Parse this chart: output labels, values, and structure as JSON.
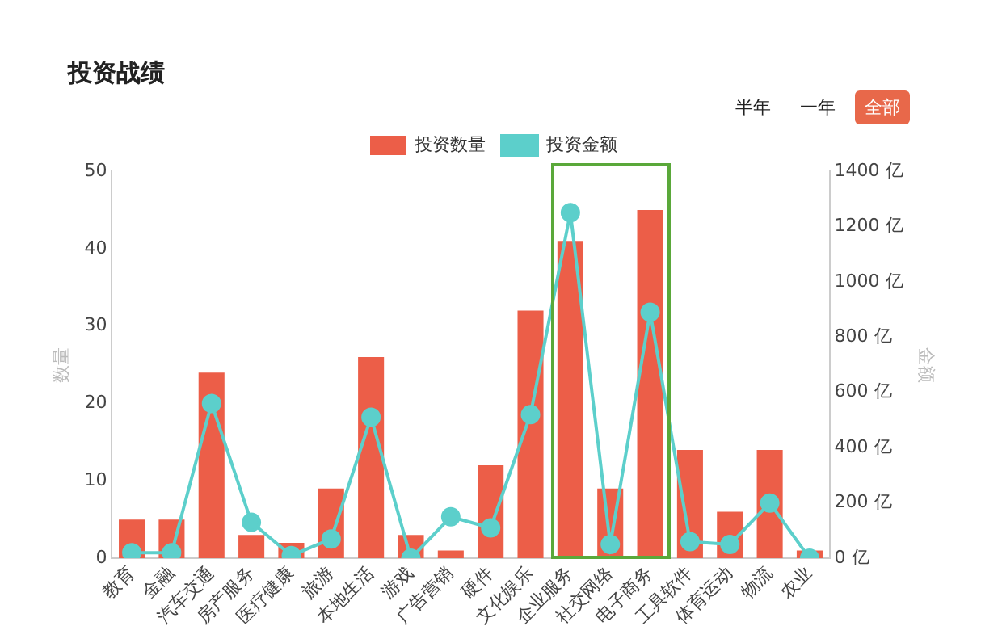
{
  "chart_data": {
    "type": "bar",
    "title": "投资战绩",
    "ylabel": "数量",
    "y2label": "金额",
    "annotations": [
      "半年",
      "一年",
      "全部"
    ],
    "categories": [
      "教育",
      "金融",
      "汽车交通",
      "房产服务",
      "医疗健康",
      "旅游",
      "本地生活",
      "游戏",
      "广告营销",
      "硬件",
      "文化娱乐",
      "企业服务",
      "社交网络",
      "电子商务",
      "工具软件",
      "体育运动",
      "物流",
      "农业"
    ],
    "series": [
      {
        "name": "投资数量",
        "color": "#ec5e48",
        "values": [
          5,
          5,
          24,
          3,
          2,
          9,
          26,
          3,
          1,
          12,
          32,
          41,
          9,
          45,
          14,
          6,
          14,
          1
        ]
      },
      {
        "name": "投资金额",
        "type": "line",
        "axis": "y2",
        "color": "#5ccfcb",
        "values": [
          20,
          20,
          560,
          130,
          10,
          70,
          510,
          0,
          150,
          110,
          520,
          1250,
          50,
          890,
          60,
          50,
          200,
          0
        ]
      }
    ],
    "ylim": [
      0,
      50
    ],
    "yticks": [
      0,
      10,
      20,
      30,
      40,
      50
    ],
    "y2lim": [
      0,
      1400
    ],
    "y2ticks": [
      {
        "value": 0,
        "label": "0 亿"
      },
      {
        "value": 200,
        "label": "200 亿"
      },
      {
        "value": 400,
        "label": "400 亿"
      },
      {
        "value": 600,
        "label": "600 亿"
      },
      {
        "value": 800,
        "label": "800 亿"
      },
      {
        "value": 1000,
        "label": "1000 亿"
      },
      {
        "value": 1200,
        "label": "1200 亿"
      },
      {
        "value": 1400,
        "label": "1400 亿"
      }
    ],
    "grid": false,
    "legend": "top",
    "marker": "circle"
  }
}
